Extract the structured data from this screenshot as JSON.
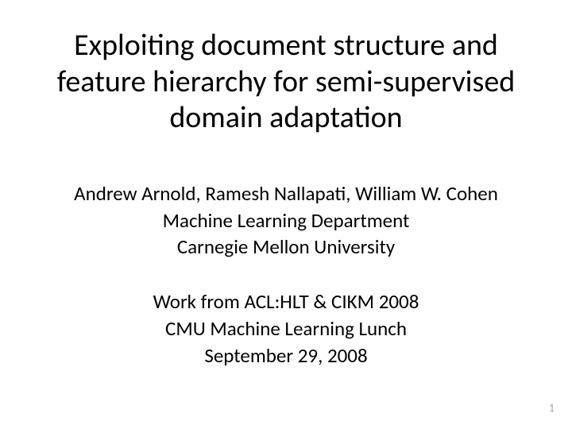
{
  "slide": {
    "title": "Exploiting document structure and feature hierarchy for semi-supervised domain adaptation",
    "authors": "Andrew Arnold, Ramesh Nallapati, William W. Cohen",
    "department": "Machine Learning Department",
    "university": "Carnegie Mellon University",
    "venue": "Work from ACL:HLT & CIKM 2008",
    "event": "CMU Machine Learning Lunch",
    "date": "September 29, 2008",
    "page_number": "1",
    "background_color": "#ffffff",
    "title_color": "#000000",
    "body_color": "#000000",
    "page_number_color": "#a0a0a0",
    "title_fontsize": 38,
    "body_fontsize": 25,
    "pagenum_fontsize": 14
  }
}
